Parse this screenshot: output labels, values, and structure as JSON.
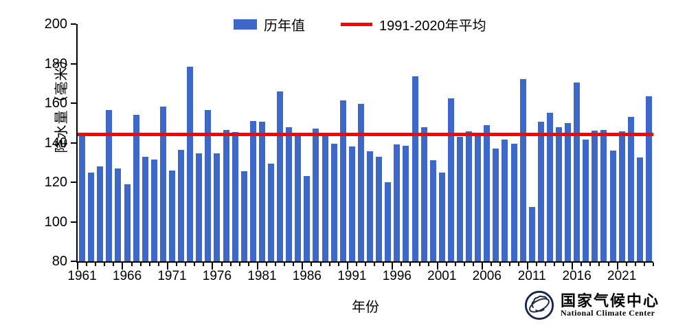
{
  "chart_data": {
    "type": "bar",
    "title": "",
    "years": [
      1961,
      1962,
      1963,
      1964,
      1965,
      1966,
      1967,
      1968,
      1969,
      1970,
      1971,
      1972,
      1973,
      1974,
      1975,
      1976,
      1977,
      1978,
      1979,
      1980,
      1981,
      1982,
      1983,
      1984,
      1985,
      1986,
      1987,
      1988,
      1989,
      1990,
      1991,
      1992,
      1993,
      1994,
      1995,
      1996,
      1997,
      1998,
      1999,
      2000,
      2001,
      2002,
      2003,
      2004,
      2005,
      2006,
      2007,
      2008,
      2009,
      2010,
      2011,
      2012,
      2013,
      2014,
      2015,
      2016,
      2017,
      2018,
      2019,
      2020,
      2021,
      2022,
      2023,
      2024
    ],
    "values": [
      144.0,
      124.8,
      128.0,
      156.6,
      127.0,
      119.0,
      154.0,
      133.0,
      131.5,
      158.2,
      126.0,
      136.5,
      178.6,
      134.5,
      156.5,
      134.5,
      146.5,
      145.5,
      125.5,
      151.0,
      150.5,
      129.5,
      166.0,
      148.0,
      144.3,
      123.0,
      147.0,
      144.3,
      139.5,
      161.5,
      138.0,
      159.5,
      135.5,
      133.0,
      120.0,
      139.0,
      138.5,
      173.5,
      148.0,
      131.0,
      125.0,
      162.5,
      143.0,
      145.7,
      144.7,
      149.0,
      137.0,
      141.7,
      139.5,
      172.3,
      107.5,
      150.7,
      155.0,
      147.8,
      149.8,
      170.4,
      141.5,
      146.0,
      146.5,
      135.9,
      145.7,
      153.2,
      132.7,
      163.5
    ],
    "average_line_value": 144.2,
    "ylim": [
      80,
      200
    ],
    "y_ticks": [
      80,
      100,
      120,
      140,
      160,
      180,
      200
    ],
    "x_tick_years": [
      1961,
      1966,
      1971,
      1976,
      1981,
      1986,
      1991,
      1996,
      2001,
      2006,
      2011,
      2016,
      2021
    ],
    "xlabel": "年份",
    "ylabel": "降水量（毫米）",
    "legend_position": "top",
    "grid": false,
    "bar_color": "#3E68C7",
    "line_color": "#FF0000",
    "axis_color": "#000000"
  },
  "legend": {
    "series_label": "历年值",
    "average_label": "1991-2020年平均"
  },
  "axes": {
    "x_title": "年份",
    "y_title": "降水量（毫米）"
  },
  "logo": {
    "cn": "国家气候中心",
    "en": "National Climate Center",
    "emblem": "globe-cloud-seal-icon",
    "emblem_color": "#16264d"
  }
}
